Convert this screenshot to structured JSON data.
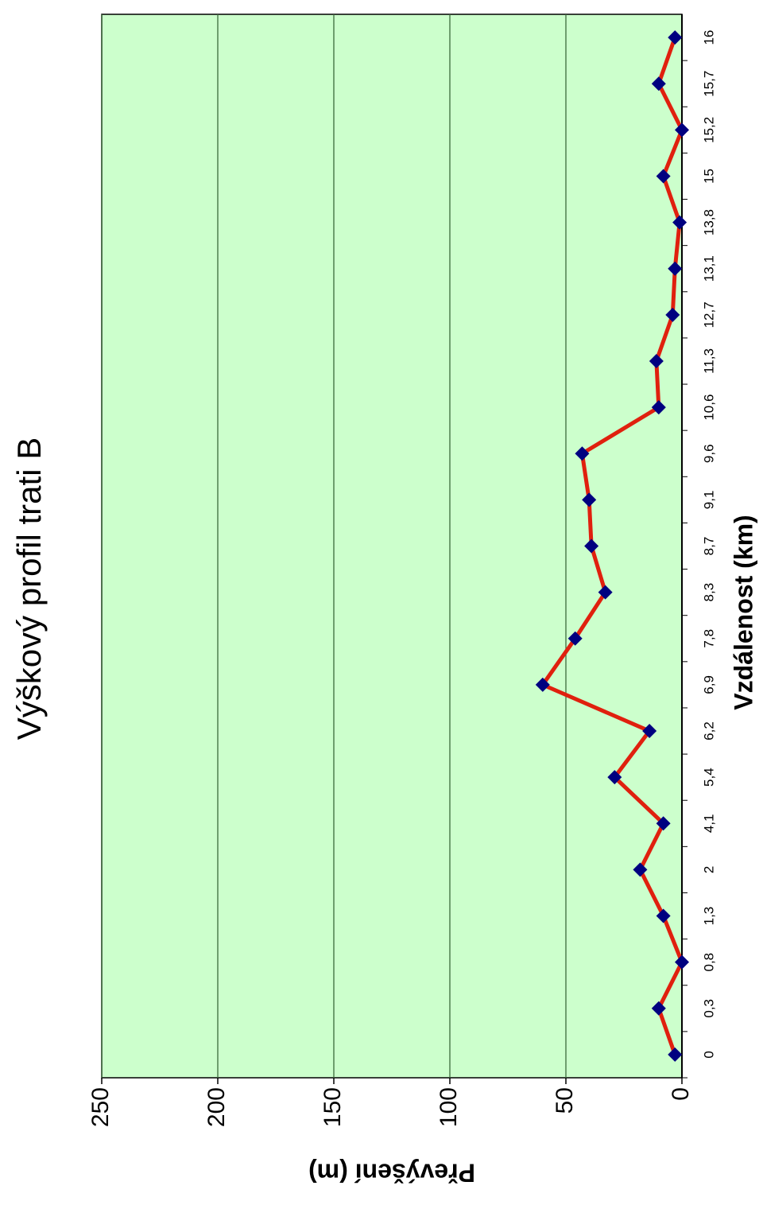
{
  "chart_data": {
    "type": "line",
    "title": "Výškový profil trati B",
    "x_label": "Vzdálenost (km)",
    "y_label": "Převýšení (m)",
    "categories": [
      "0",
      "0,3",
      "0,8",
      "1,3",
      "2",
      "4,1",
      "5,4",
      "6,2",
      "6,9",
      "7,8",
      "8,3",
      "8,7",
      "9,1",
      "9,6",
      "10,6",
      "11,3",
      "12,7",
      "13,1",
      "13,8",
      "15",
      "15,2",
      "15,7",
      "16"
    ],
    "series": [
      {
        "name": "Převýšení",
        "color": "#e0200e",
        "marker_color": "#000080",
        "values": [
          3,
          10,
          0,
          8,
          18,
          8,
          29,
          14,
          60,
          46,
          33,
          39,
          40,
          43,
          10,
          11,
          4,
          3,
          1,
          8,
          0,
          10,
          3
        ]
      }
    ],
    "ylim": [
      0,
      250
    ],
    "yticks": [
      0,
      50,
      100,
      150,
      200,
      250
    ],
    "grid": true,
    "background": "#ccffcc"
  }
}
